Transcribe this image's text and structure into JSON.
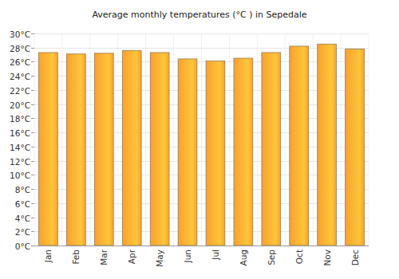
{
  "chart_data": {
    "type": "bar",
    "title": "Average monthly temperatures (°C ) in Sepedale",
    "categories": [
      "Jan",
      "Feb",
      "Mar",
      "Apr",
      "May",
      "Jun",
      "Jul",
      "Aug",
      "Sep",
      "Oct",
      "Nov",
      "Dec"
    ],
    "values": [
      27.3,
      27.1,
      27.2,
      27.6,
      27.3,
      26.4,
      26.1,
      26.5,
      27.3,
      28.2,
      28.5,
      27.8
    ],
    "color": "#f9a12e",
    "ylim": [
      0,
      30
    ],
    "yticks": [
      {
        "value": 0,
        "label": "0°C"
      },
      {
        "value": 2,
        "label": "2°C"
      },
      {
        "value": 4,
        "label": "4°C"
      },
      {
        "value": 6,
        "label": "6°C"
      },
      {
        "value": 8,
        "label": "8°C"
      },
      {
        "value": 10,
        "label": "10°C"
      },
      {
        "value": 12,
        "label": "12°C"
      },
      {
        "value": 14,
        "label": "14°C"
      },
      {
        "value": 16,
        "label": "16°C"
      },
      {
        "value": 18,
        "label": "18°C"
      },
      {
        "value": 20,
        "label": "20°C"
      },
      {
        "value": 22,
        "label": "22°C"
      },
      {
        "value": 24,
        "label": "24°C"
      },
      {
        "value": 26,
        "label": "26°C"
      },
      {
        "value": 28,
        "label": "28°C"
      },
      {
        "value": 30,
        "label": "30°C"
      }
    ],
    "grid": true
  }
}
